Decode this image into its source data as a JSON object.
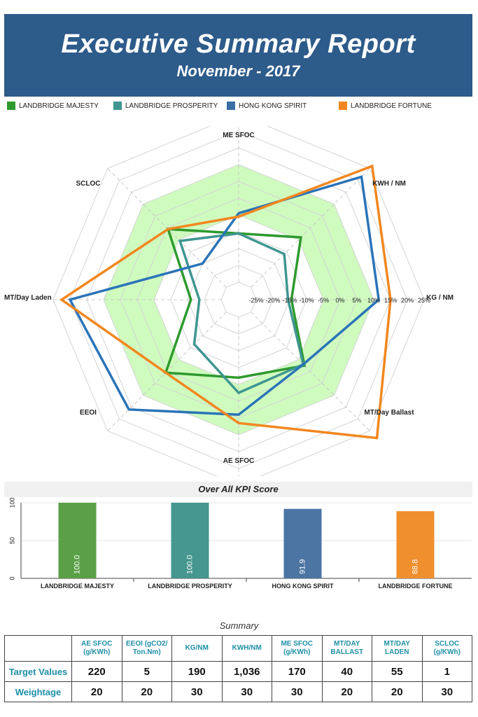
{
  "header": {
    "title": "Executive Summary Report",
    "subtitle": "November - 2017"
  },
  "legend": [
    {
      "label": "LANDBRIDGE MAJESTY",
      "color": "#2e9a2e"
    },
    {
      "label": "LANDBRIDGE PROSPERITY",
      "color": "#3f9690"
    },
    {
      "label": "HONG KONG SPIRIT",
      "color": "#3a6ea5"
    },
    {
      "label": "LANDBRIDGE FORTUNE",
      "color": "#f2871f"
    }
  ],
  "chart_data": [
    {
      "type": "radar",
      "axes": [
        "ME SFOC",
        "KWH / NM",
        "KG / NM",
        "MT/Day Ballast",
        "AE SFOC",
        "EEOI",
        "MT/Day Laden",
        "SCLOC"
      ],
      "ticks": [
        "-25%",
        "-20%",
        "-15%",
        "-10%",
        "-5%",
        "0%",
        "5%",
        "10%",
        "15%",
        "20%",
        "25%"
      ],
      "range": [
        -25,
        25
      ],
      "band": [
        -5,
        10
      ],
      "band_color": "#cffbbf",
      "series": [
        {
          "name": "LANDBRIDGE MAJESTY",
          "color": "#2e9a2e",
          "values": [
            -10.5,
            -4,
            -14.5,
            -2.5,
            -7,
            0.5,
            -16,
            -0.5
          ]
        },
        {
          "name": "LANDBRIDGE PROSPERITY",
          "color": "#3f9690",
          "values": [
            -10.5,
            -11,
            -15.5,
            -3,
            -2.5,
            -11.5,
            -18.5,
            -5.5
          ]
        },
        {
          "name": "HONG KONG SPIRIT",
          "color": "#2a74b8",
          "values": [
            -4.5,
            21.5,
            11.5,
            -3,
            4,
            16,
            20,
            -15
          ]
        },
        {
          "name": "LANDBRIDGE FORTUNE",
          "color": "#f2871f",
          "values": [
            -5.5,
            26,
            15,
            28,
            6.5,
            0.5,
            22.5,
            -0.5
          ]
        }
      ]
    },
    {
      "type": "bar",
      "title": "Over All KPI Score",
      "categories": [
        "LANDBRIDGE MAJESTY",
        "LANDBRIDGE PROSPERITY",
        "HONG KONG SPIRIT",
        "LANDBRIDGE FORTUNE"
      ],
      "values": [
        100.0,
        100.0,
        91.9,
        88.8
      ],
      "value_labels": [
        "100.0",
        "100.0",
        "91.9",
        "88.8"
      ],
      "colors": [
        "#5aa047",
        "#45978f",
        "#4c75a3",
        "#f08f2e"
      ],
      "yticks": [
        "0",
        "50",
        "100"
      ],
      "ylim": [
        0,
        100
      ]
    }
  ],
  "summary": {
    "title": "Summary",
    "headers": [
      "AE SFOC (g/KWh)",
      "EEOI (gCO2/ Ton.Nm)",
      "KG/NM",
      "KWH/NM",
      "ME SFOC (g/KWh)",
      "MT/DAY BALLAST",
      "MT/DAY LADEN",
      "SCLOC (g/KWh)"
    ],
    "rows": [
      {
        "label": "Target Values",
        "values": [
          "220",
          "5",
          "190",
          "1,036",
          "170",
          "40",
          "55",
          "1"
        ]
      },
      {
        "label": "Weightage",
        "values": [
          "20",
          "20",
          "30",
          "30",
          "30",
          "20",
          "20",
          "30"
        ]
      }
    ]
  }
}
